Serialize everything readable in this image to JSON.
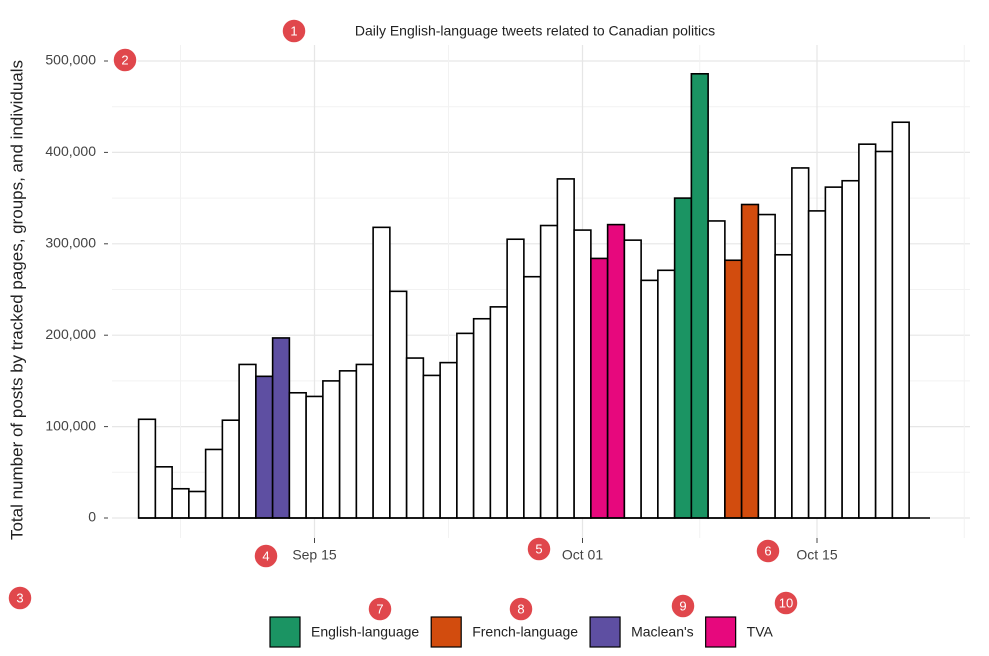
{
  "chart_data": {
    "type": "bar",
    "title": "Daily English-language tweets related to Canadian politics",
    "y_label": "Total number of posts by tracked pages, groups, and individuals",
    "x": [
      "Sep 05",
      "Sep 06",
      "Sep 07",
      "Sep 08",
      "Sep 09",
      "Sep 10",
      "Sep 11",
      "Sep 12",
      "Sep 13",
      "Sep 14",
      "Sep 15",
      "Sep 16",
      "Sep 17",
      "Sep 18",
      "Sep 19",
      "Sep 20",
      "Sep 21",
      "Sep 22",
      "Sep 23",
      "Sep 24",
      "Sep 25",
      "Sep 26",
      "Sep 27",
      "Sep 28",
      "Sep 29",
      "Sep 30",
      "Oct 01",
      "Oct 02",
      "Oct 03",
      "Oct 04",
      "Oct 05",
      "Oct 06",
      "Oct 07",
      "Oct 08",
      "Oct 09",
      "Oct 10",
      "Oct 11",
      "Oct 12",
      "Oct 13",
      "Oct 14",
      "Oct 15",
      "Oct 16",
      "Oct 17",
      "Oct 18",
      "Oct 19",
      "Oct 20"
    ],
    "values": [
      108000,
      56000,
      32000,
      29000,
      75000,
      107000,
      168000,
      155000,
      197000,
      137000,
      133000,
      150000,
      161000,
      168000,
      318000,
      248000,
      175000,
      156000,
      170000,
      202000,
      218000,
      231000,
      305000,
      264000,
      320000,
      371000,
      315000,
      284000,
      321000,
      304000,
      260000,
      271000,
      350000,
      486000,
      325000,
      282000,
      343000,
      332000,
      288000,
      383000,
      336000,
      362000,
      369000,
      409000,
      401000,
      433000
    ],
    "bar_colors": [
      "#ffffff",
      "#ffffff",
      "#ffffff",
      "#ffffff",
      "#ffffff",
      "#ffffff",
      "#ffffff",
      "#5e4fa2",
      "#5e4fa2",
      "#ffffff",
      "#ffffff",
      "#ffffff",
      "#ffffff",
      "#ffffff",
      "#ffffff",
      "#ffffff",
      "#ffffff",
      "#ffffff",
      "#ffffff",
      "#ffffff",
      "#ffffff",
      "#ffffff",
      "#ffffff",
      "#ffffff",
      "#ffffff",
      "#ffffff",
      "#ffffff",
      "#e7087d",
      "#e7087d",
      "#ffffff",
      "#ffffff",
      "#ffffff",
      "#1b9463",
      "#1b9463",
      "#ffffff",
      "#d24c0e",
      "#d24c0e",
      "#ffffff",
      "#ffffff",
      "#ffffff",
      "#ffffff",
      "#ffffff",
      "#ffffff",
      "#ffffff",
      "#ffffff",
      "#ffffff"
    ],
    "legend": [
      {
        "name": "English-language",
        "color": "#1b9463"
      },
      {
        "name": "French-language",
        "color": "#d24c0e"
      },
      {
        "name": "Maclean's",
        "color": "#5e4fa2"
      },
      {
        "name": "TVA",
        "color": "#e7087d"
      }
    ],
    "ylim": [
      0,
      500000
    ],
    "yticks": [
      0,
      {
        "value": 100000,
        "label": "100,000"
      },
      {
        "value": 200000,
        "label": "200,000"
      },
      {
        "value": 300000,
        "label": "300,000"
      },
      {
        "value": 400000,
        "label": "400,000"
      },
      {
        "value": 500000,
        "label": "500,000"
      }
    ],
    "xticks": [
      "Sep 15",
      "Oct 01",
      "Oct 15"
    ],
    "grid": true
  },
  "annotation_badges": [
    1,
    2,
    3,
    4,
    5,
    6,
    7,
    8,
    9,
    10
  ]
}
